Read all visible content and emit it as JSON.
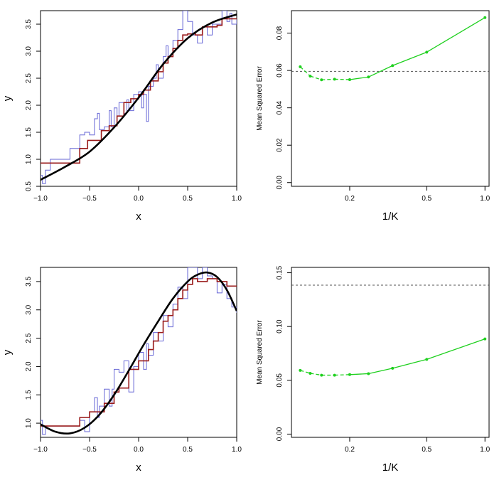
{
  "chart_data": [
    {
      "type": "line",
      "panel": "top-left",
      "xlabel": "x",
      "ylabel": "y",
      "xlim": [
        -1.0,
        1.0
      ],
      "ylim": [
        0.5,
        3.75
      ],
      "x_ticks": [
        -1.0,
        -0.5,
        0.0,
        0.5,
        1.0
      ],
      "x_tick_labels": [
        "−1.0",
        "−0.5",
        "0.0",
        "0.5",
        "1.0"
      ],
      "y_ticks": [
        0.5,
        1.0,
        1.5,
        2.0,
        2.5,
        3.0,
        3.5
      ],
      "y_tick_labels": [
        "0.5",
        "1.0",
        "1.5",
        "2.0",
        "2.5",
        "3.0",
        "3.5"
      ],
      "series": [
        {
          "style": "line",
          "color": "#000000",
          "x": [
            -1.0,
            -0.75,
            -0.5,
            -0.25,
            0.0,
            0.25,
            0.5,
            0.75,
            1.0
          ],
          "y": [
            0.62,
            0.86,
            1.14,
            1.59,
            2.14,
            2.76,
            3.24,
            3.53,
            3.68
          ]
        },
        {
          "style": "step",
          "color": "#9a1b1b",
          "x": [
            -1.0,
            -0.65,
            -0.6,
            -0.52,
            -0.45,
            -0.38,
            -0.3,
            -0.22,
            -0.15,
            -0.08,
            0.0,
            0.05,
            0.12,
            0.2,
            0.25,
            0.3,
            0.35,
            0.4,
            0.45,
            0.5,
            0.58,
            0.65,
            0.7,
            0.8,
            0.85,
            0.9,
            1.0
          ],
          "y": [
            0.93,
            0.93,
            1.2,
            1.35,
            1.35,
            1.53,
            1.62,
            1.8,
            2.05,
            2.12,
            2.2,
            2.28,
            2.45,
            2.62,
            2.78,
            2.9,
            3.05,
            3.2,
            3.3,
            3.32,
            3.3,
            3.45,
            3.45,
            3.48,
            3.6,
            3.6,
            3.6
          ]
        },
        {
          "style": "step",
          "color": "#6666d6",
          "x": [
            -1.0,
            -0.98,
            -0.95,
            -0.9,
            -0.85,
            -0.8,
            -0.7,
            -0.6,
            -0.55,
            -0.5,
            -0.45,
            -0.42,
            -0.4,
            -0.35,
            -0.3,
            -0.28,
            -0.25,
            -0.22,
            -0.2,
            -0.15,
            -0.12,
            -0.1,
            -0.05,
            0.0,
            0.03,
            0.05,
            0.08,
            0.1,
            0.15,
            0.18,
            0.2,
            0.25,
            0.28,
            0.3,
            0.35,
            0.4,
            0.45,
            0.5,
            0.55,
            0.6,
            0.65,
            0.7,
            0.75,
            0.8,
            0.85,
            0.9,
            0.93,
            0.95,
            1.0
          ],
          "y": [
            0.7,
            0.55,
            0.8,
            1.0,
            1.0,
            1.0,
            1.2,
            1.45,
            1.5,
            1.45,
            1.75,
            1.85,
            1.55,
            1.6,
            1.9,
            1.6,
            1.95,
            1.8,
            2.05,
            1.85,
            2.1,
            1.9,
            2.2,
            2.25,
            1.95,
            2.2,
            1.7,
            2.35,
            2.5,
            2.75,
            2.5,
            2.9,
            3.1,
            2.9,
            3.2,
            3.4,
            3.75,
            3.55,
            3.3,
            3.15,
            3.45,
            3.3,
            3.5,
            3.5,
            3.75,
            3.55,
            3.7,
            3.5,
            3.6
          ]
        }
      ]
    },
    {
      "type": "line",
      "panel": "top-right",
      "xlabel": "1/K",
      "ylabel": "Mean Squared Error",
      "x_scale": "log",
      "xlim": [
        0.1,
        1.05
      ],
      "ylim": [
        -0.002,
        0.092
      ],
      "x_ticks": [
        0.2,
        0.5,
        1.0
      ],
      "x_tick_labels": [
        "0.2",
        "0.5",
        "1.0"
      ],
      "y_ticks": [
        0.0,
        0.02,
        0.04,
        0.06,
        0.08
      ],
      "y_tick_labels": [
        "0.00",
        "0.02",
        "0.04",
        "0.06",
        "0.08"
      ],
      "series": [
        {
          "style": "dashed-line-points",
          "color": "#1ed01e",
          "x": [
            0.111,
            0.125,
            0.143,
            0.167,
            0.2,
            0.25,
            0.333,
            0.5,
            1.0
          ],
          "y": [
            0.062,
            0.057,
            0.055,
            0.0553,
            0.0551,
            0.0565,
            0.0626,
            0.0698,
            0.0883
          ]
        }
      ],
      "reference_line": {
        "y": 0.0595,
        "style": "dotted",
        "color": "#555555"
      }
    },
    {
      "type": "line",
      "panel": "bottom-left",
      "xlabel": "x",
      "ylabel": "y",
      "xlim": [
        -1.0,
        1.0
      ],
      "ylim": [
        0.75,
        3.75
      ],
      "x_ticks": [
        -1.0,
        -0.5,
        0.0,
        0.5,
        1.0
      ],
      "x_tick_labels": [
        "−1.0",
        "−0.5",
        "0.0",
        "0.5",
        "1.0"
      ],
      "y_ticks": [
        1.0,
        1.5,
        2.0,
        2.5,
        3.0,
        3.5
      ],
      "y_tick_labels": [
        "1.0",
        "1.5",
        "2.0",
        "2.5",
        "3.0",
        "3.5"
      ],
      "series": [
        {
          "style": "line",
          "color": "#000000",
          "x": [
            -1.0,
            -0.85,
            -0.7,
            -0.55,
            -0.4,
            -0.25,
            -0.1,
            0.05,
            0.2,
            0.35,
            0.5,
            0.6,
            0.7,
            0.8,
            0.9,
            1.0
          ],
          "y": [
            0.98,
            0.85,
            0.82,
            0.92,
            1.15,
            1.5,
            1.93,
            2.38,
            2.8,
            3.2,
            3.5,
            3.62,
            3.66,
            3.58,
            3.35,
            2.98
          ]
        },
        {
          "style": "step",
          "color": "#9a1b1b",
          "x": [
            -1.0,
            -0.65,
            -0.6,
            -0.5,
            -0.45,
            -0.35,
            -0.25,
            -0.2,
            -0.1,
            0.0,
            0.1,
            0.15,
            0.2,
            0.25,
            0.3,
            0.35,
            0.4,
            0.45,
            0.5,
            0.55,
            0.6,
            0.7,
            0.8,
            0.9,
            1.0
          ],
          "y": [
            0.95,
            0.95,
            1.1,
            1.2,
            1.2,
            1.35,
            1.55,
            1.62,
            1.95,
            2.1,
            2.3,
            2.45,
            2.6,
            2.8,
            2.9,
            3.0,
            3.2,
            3.35,
            3.45,
            3.55,
            3.5,
            3.55,
            3.5,
            3.42,
            3.42
          ]
        },
        {
          "style": "step",
          "color": "#6666d6",
          "x": [
            -1.0,
            -0.98,
            -0.95,
            -0.85,
            -0.7,
            -0.6,
            -0.55,
            -0.5,
            -0.45,
            -0.42,
            -0.4,
            -0.35,
            -0.3,
            -0.27,
            -0.25,
            -0.2,
            -0.15,
            -0.1,
            -0.05,
            0.0,
            0.05,
            0.08,
            0.1,
            0.15,
            0.2,
            0.25,
            0.3,
            0.35,
            0.4,
            0.45,
            0.5,
            0.55,
            0.6,
            0.65,
            0.7,
            0.75,
            0.8,
            0.85,
            0.9,
            0.95,
            1.0
          ],
          "y": [
            1.05,
            0.8,
            0.95,
            0.95,
            0.95,
            1.05,
            0.85,
            1.2,
            1.45,
            1.1,
            1.3,
            1.6,
            1.3,
            1.6,
            1.95,
            1.9,
            2.1,
            1.55,
            2.0,
            2.25,
            1.95,
            2.4,
            2.2,
            2.6,
            2.45,
            2.9,
            2.7,
            3.1,
            3.4,
            3.2,
            3.75,
            3.75,
            3.55,
            3.75,
            3.6,
            3.55,
            3.3,
            3.45,
            3.2,
            3.05,
            2.95
          ]
        }
      ]
    },
    {
      "type": "line",
      "panel": "bottom-right",
      "xlabel": "1/K",
      "ylabel": "Mean Squared Error",
      "x_scale": "log",
      "xlim": [
        0.1,
        1.05
      ],
      "ylim": [
        -0.003,
        0.155
      ],
      "x_ticks": [
        0.2,
        0.5,
        1.0
      ],
      "x_tick_labels": [
        "0.2",
        "0.5",
        "1.0"
      ],
      "y_ticks": [
        0.0,
        0.05,
        0.1,
        0.15
      ],
      "y_tick_labels": [
        "0.00",
        "0.05",
        "0.10",
        "0.15"
      ],
      "series": [
        {
          "style": "dashed-line-points",
          "color": "#1ed01e",
          "x": [
            0.111,
            0.125,
            0.143,
            0.167,
            0.2,
            0.25,
            0.333,
            0.5,
            1.0
          ],
          "y": [
            0.0592,
            0.0565,
            0.0548,
            0.0548,
            0.0553,
            0.0562,
            0.0612,
            0.0695,
            0.0885
          ]
        }
      ],
      "reference_line": {
        "y": 0.1385,
        "style": "dotted",
        "color": "#555555"
      }
    }
  ]
}
